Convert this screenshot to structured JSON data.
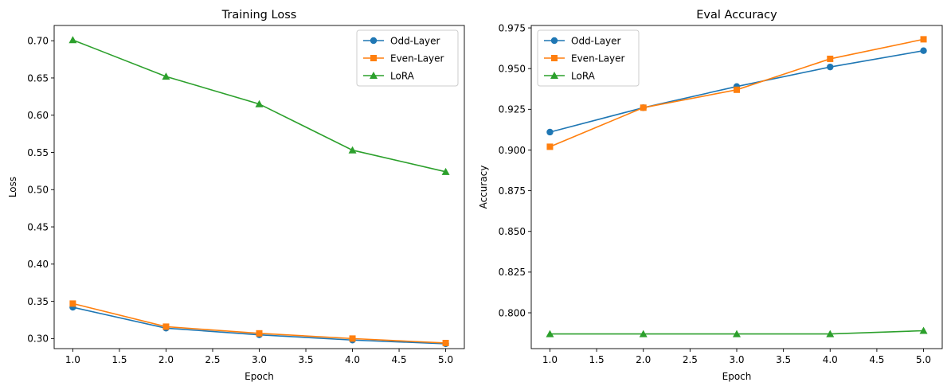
{
  "chart_data": [
    {
      "type": "line",
      "title": "Training Loss",
      "xlabel": "Epoch",
      "ylabel": "Loss",
      "xlim": [
        0.8,
        5.2
      ],
      "ylim": [
        0.2865,
        0.7205
      ],
      "xticks": [
        1.0,
        1.5,
        2.0,
        2.5,
        3.0,
        3.5,
        4.0,
        4.5,
        5.0
      ],
      "xtick_labels": [
        "1.0",
        "1.5",
        "2.0",
        "2.5",
        "3.0",
        "3.5",
        "4.0",
        "4.5",
        "5.0"
      ],
      "yticks": [
        0.3,
        0.35,
        0.4,
        0.45,
        0.5,
        0.55,
        0.6,
        0.65,
        0.7
      ],
      "ytick_labels": [
        "0.30",
        "0.35",
        "0.40",
        "0.45",
        "0.50",
        "0.55",
        "0.60",
        "0.65",
        "0.70"
      ],
      "legend_position": "top-right",
      "grid": false,
      "x": [
        1,
        2,
        3,
        4,
        5
      ],
      "series": [
        {
          "name": "Odd-Layer",
          "color": "#1f77b4",
          "marker": "circle",
          "values": [
            0.342,
            0.314,
            0.305,
            0.298,
            0.293
          ]
        },
        {
          "name": "Even-Layer",
          "color": "#ff7f0e",
          "marker": "square",
          "values": [
            0.347,
            0.316,
            0.307,
            0.3,
            0.294
          ]
        },
        {
          "name": "LoRA",
          "color": "#2ca02c",
          "marker": "triangle",
          "values": [
            0.701,
            0.652,
            0.615,
            0.553,
            0.524
          ]
        }
      ]
    },
    {
      "type": "line",
      "title": "Eval Accuracy",
      "xlabel": "Epoch",
      "ylabel": "Accuracy",
      "xlim": [
        0.8,
        5.2
      ],
      "ylim": [
        0.778,
        0.9765
      ],
      "xticks": [
        1.0,
        1.5,
        2.0,
        2.5,
        3.0,
        3.5,
        4.0,
        4.5,
        5.0
      ],
      "xtick_labels": [
        "1.0",
        "1.5",
        "2.0",
        "2.5",
        "3.0",
        "3.5",
        "4.0",
        "4.5",
        "5.0"
      ],
      "yticks": [
        0.8,
        0.825,
        0.85,
        0.875,
        0.9,
        0.925,
        0.95,
        0.975
      ],
      "ytick_labels": [
        "0.800",
        "0.825",
        "0.850",
        "0.875",
        "0.900",
        "0.925",
        "0.950",
        "0.975"
      ],
      "legend_position": "top-left",
      "grid": false,
      "x": [
        1,
        2,
        3,
        4,
        5
      ],
      "series": [
        {
          "name": "Odd-Layer",
          "color": "#1f77b4",
          "marker": "circle",
          "values": [
            0.911,
            0.926,
            0.939,
            0.951,
            0.961
          ]
        },
        {
          "name": "Even-Layer",
          "color": "#ff7f0e",
          "marker": "square",
          "values": [
            0.902,
            0.926,
            0.937,
            0.956,
            0.968
          ]
        },
        {
          "name": "LoRA",
          "color": "#2ca02c",
          "marker": "triangle",
          "values": [
            0.787,
            0.787,
            0.787,
            0.787,
            0.789
          ]
        }
      ]
    }
  ]
}
